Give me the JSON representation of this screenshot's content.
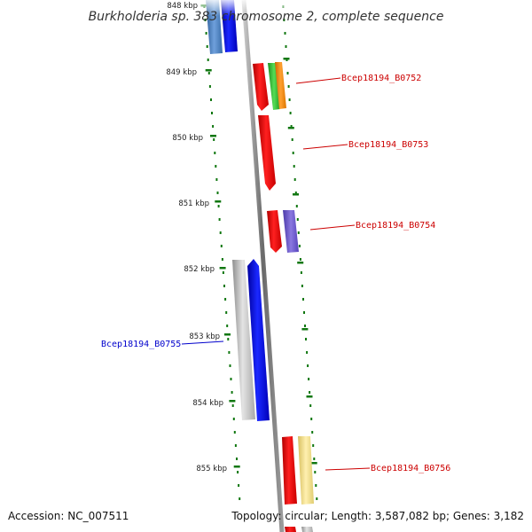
{
  "title": "Burkholderia sp. 383 chromosome 2, complete sequence",
  "accession": "Accession: NC_007511",
  "topology": "Topology: circular; Length: 3,587,082 bp; Genes: 3,182",
  "kbp_labels": [
    "848 kbp",
    "849 kbp",
    "850 kbp",
    "851 kbp",
    "852 kbp",
    "853 kbp",
    "854 kbp",
    "855 kbp"
  ],
  "gene_labels": [
    {
      "text": "Bcep18194_B0752",
      "color": "#cc0000"
    },
    {
      "text": "Bcep18194_B0753",
      "color": "#cc0000"
    },
    {
      "text": "Bcep18194_B0754",
      "color": "#cc0000"
    },
    {
      "text": "Bcep18194_B0755",
      "color": "#0000cc"
    },
    {
      "text": "Bcep18194_B0756",
      "color": "#cc0000"
    }
  ],
  "colors": {
    "backbone": "#7a7a7a",
    "red": "#ee1111",
    "blue": "#0a14ee",
    "green": "#33bb33",
    "orange": "#ff8800",
    "purple": "#6a55cc",
    "gray": "#b8b8b8",
    "yellow": "#f2e08a",
    "steelblue": "#4a7fc0",
    "tick": "#117711"
  }
}
